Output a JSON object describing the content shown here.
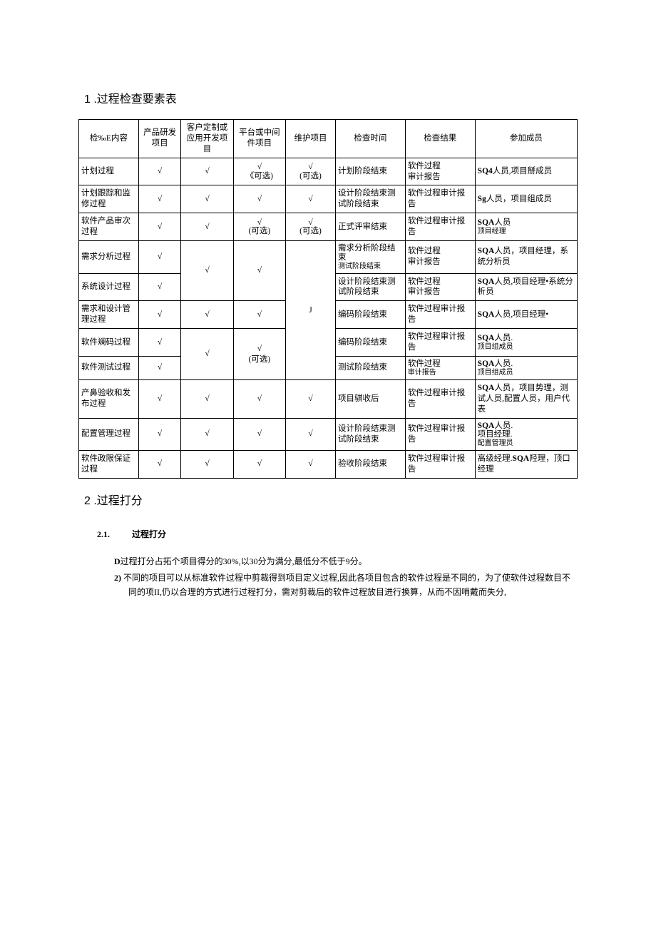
{
  "section1": {
    "number": "1",
    "title": ".过程检查要素表"
  },
  "table": {
    "headers": {
      "h0": "检‰E内容",
      "h1": "产品研发项目",
      "h2": "客户定制或应用开发项目",
      "h3": "平台或中间件项目",
      "h4": "维护项目",
      "h5": "检查时间",
      "h6": "检查结果",
      "h7": "参加成员"
    },
    "rows": [
      {
        "c0": "计划过程",
        "c1": "√",
        "c2": "√",
        "c3": "√\n《可选)",
        "c4": "√\n(可选)",
        "c5": "计划阶段结束",
        "c6": "软件过程\n审计报告",
        "c7": "SQ4人员,项目掰成员"
      },
      {
        "c0": "计划跟踪和监修过程",
        "c1": "√",
        "c2": "√",
        "c3": "√",
        "c4": "√",
        "c5": "设计阶段结束测试阶段结束",
        "c6": "软件过程审计报告",
        "c7": "Sg人员，项目组成员"
      },
      {
        "c0": "软件产品审次过程",
        "c1": "√",
        "c2": "√",
        "c3": "√\n(可选)",
        "c4": "√\n(可选)",
        "c5": "正式评审结束",
        "c6": "软件过程审计报告",
        "c7": "SQA人员\n顶目经理"
      },
      {
        "c0": "需求分析过程",
        "c1": "√",
        "c5": "需求分析阶段结束\n测试阶段结束",
        "c6": "软件过程\n审计报告",
        "c7": "SQA人员，项目经理，系统分析员"
      },
      {
        "c0": "系统设计过程",
        "c1": "√",
        "c5": "设计阶段结束测试阶段结束",
        "c6": "软件过程\n审计报告",
        "c7": "SQA人员,项目经理•系统分析员"
      },
      {
        "c0": "需求和设计管理过程",
        "c1": "√",
        "c2": "√",
        "c3": "√",
        "c5": "编码阶段结束",
        "c6": "软件过程审计报告",
        "c7": "SQA人员,项目经理•"
      },
      {
        "c0": "软件斓码过程",
        "c1": "√",
        "c5": "编码阶段结束",
        "c6": "软件过程审计报告",
        "c7": "SQA人员.\n顶目组成员"
      },
      {
        "c0": "软件测试过程",
        "c1": "√",
        "c5": "测试阶段结束",
        "c6": "软件过程\n审计报告",
        "c7": "SQA人员.\n顶目组成员"
      },
      {
        "c0": "产鼻验收和发布过程",
        "c1": "√",
        "c2": "√",
        "c3": "√",
        "c4": "√",
        "c5": "项目骐收后",
        "c6": "软件过程审计报告",
        "c7": "SQA人员，项目势理，测试人员,配置人员，用户代表"
      },
      {
        "c0": "配置管理过程",
        "c1": "√",
        "c2": "√",
        "c3": "√",
        "c4": "√",
        "c5": "设计阶段结束测试阶段结束",
        "c6": "软件过程审计报告",
        "c7": "SQA人员.\n项目经理.\n配置管理员"
      },
      {
        "c0": "软件政限保证过程",
        "c1": "√",
        "c2": "√",
        "c3": "√",
        "c4": "√",
        "c5": "验收阶段结束",
        "c6": "软件过程审计报告",
        "c7": "高级经理.SQA羟理，顶口经理"
      }
    ],
    "merged": {
      "r3_c2": "√",
      "r3_c3": "√",
      "r3_c4": "J",
      "r6_c2": "√",
      "r6_c3": "√\n(可选)"
    }
  },
  "section2": {
    "number": "2",
    "title": ".过程打分"
  },
  "section21": {
    "number": "2.1.",
    "title": "过程打分"
  },
  "body": {
    "p1_prefix": "D",
    "p1": "过程打分占拓个项目得分的30%,以30分为满分,最低分不低于9分。",
    "p2_prefix": "2)",
    "p2": "不同的项目可以从标准软件过程中剪裁得到项目定义过程,因此各项目包含的软件过程是不同的，为了使软件过程数目不同的项II,仍以合理的方式进行过程打分，需对剪裁后的软件过程放目进行换算，从而不因哨戴而失分,"
  }
}
